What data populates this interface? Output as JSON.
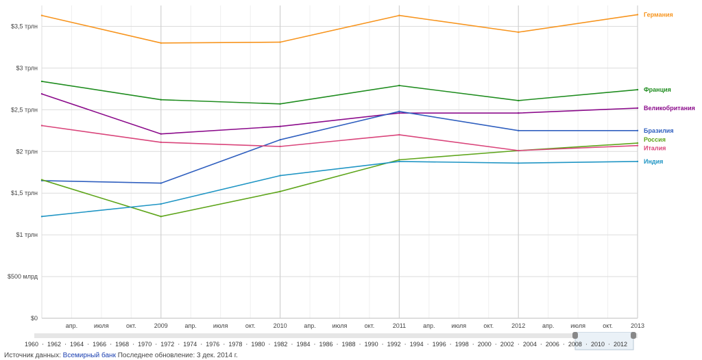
{
  "colors": {
    "Германия": "#f7941d",
    "Франция": "#1e8c1e",
    "Великобритания": "#8b0b8b",
    "Бразилия": "#2f5fbf",
    "Россия": "#5ea51b",
    "Италия": "#d9447a",
    "Индия": "#1f95c4"
  },
  "chart_data": {
    "type": "line",
    "title": "",
    "xlabel": "",
    "ylabel": "",
    "x": [
      "2008",
      "2009",
      "2010",
      "2011",
      "2012",
      "2013"
    ],
    "x_tick_labels": [
      "апр.",
      "июля",
      "окт.",
      "2009",
      "апр.",
      "июля",
      "окт.",
      "2010",
      "апр.",
      "июля",
      "окт.",
      "2011",
      "апр.",
      "июля",
      "окт.",
      "2012",
      "апр.",
      "июля",
      "окт.",
      "2013"
    ],
    "y_tick_labels": [
      "$0",
      "$500 млрд",
      "$1 трлн",
      "$1,5 трлн",
      "$2 трлн",
      "$2,5 трлн",
      "$3 трлн",
      "$3,5 трлн"
    ],
    "ylim": [
      0,
      3.75
    ],
    "y_unit": "трлн $",
    "grid": true,
    "legend_placement": "right, at line ends",
    "series": [
      {
        "name": "Германия",
        "values": [
          3.63,
          3.3,
          3.31,
          3.63,
          3.43,
          3.64
        ]
      },
      {
        "name": "Франция",
        "values": [
          2.84,
          2.62,
          2.57,
          2.79,
          2.61,
          2.74
        ]
      },
      {
        "name": "Великобритания",
        "values": [
          2.69,
          2.21,
          2.3,
          2.46,
          2.46,
          2.52
        ]
      },
      {
        "name": "Бразилия",
        "values": [
          1.65,
          1.62,
          2.14,
          2.48,
          2.25,
          2.25
        ]
      },
      {
        "name": "Россия",
        "values": [
          1.66,
          1.22,
          1.52,
          1.9,
          2.01,
          2.1
        ]
      },
      {
        "name": "Италия",
        "values": [
          2.31,
          2.11,
          2.06,
          2.2,
          2.01,
          2.07
        ]
      },
      {
        "name": "Индия",
        "values": [
          1.22,
          1.37,
          1.71,
          1.88,
          1.86,
          1.88
        ]
      }
    ]
  },
  "timeline": {
    "labels": [
      "1960",
      "1962",
      "1964",
      "1966",
      "1968",
      "1970",
      "1972",
      "1974",
      "1976",
      "1978",
      "1980",
      "1982",
      "1984",
      "1986",
      "1988",
      "1990",
      "1992",
      "1994",
      "1996",
      "1998",
      "2000",
      "2002",
      "2004",
      "2006",
      "2008",
      "2010",
      "2012"
    ],
    "selection": [
      "2008",
      "2013"
    ]
  },
  "source": {
    "prefix": "Источник данных: ",
    "link": "Всемирный банк",
    "suffix": "  Последнее обновление: 3 дек. 2014 г."
  }
}
